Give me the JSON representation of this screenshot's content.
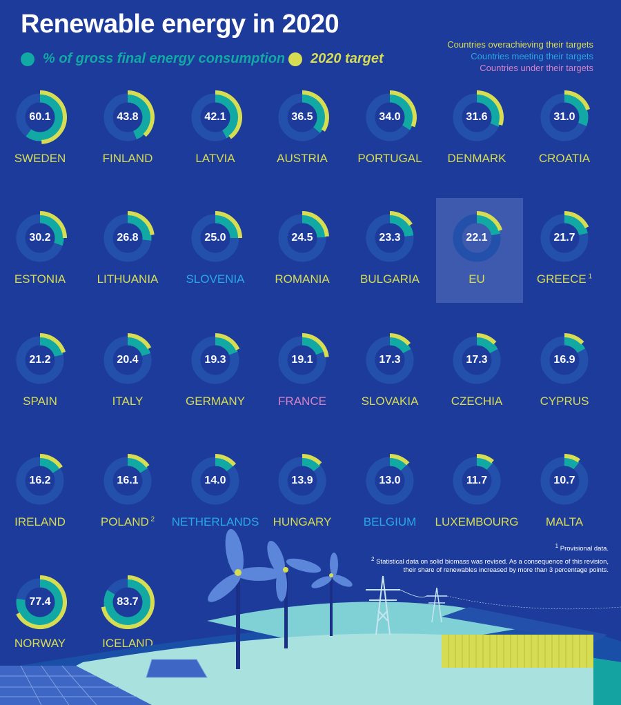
{
  "title": "Renewable energy in 2020",
  "legend": {
    "share_label": "% of gross final energy consumption",
    "target_label": "2020 target"
  },
  "status_legend": {
    "over": "Countries overachieving their targets",
    "meeting": "Countries meeting their targets",
    "under": "Countries under their targets"
  },
  "colors": {
    "background": "#1d3b9b",
    "ring_track": "#2350ab",
    "share": "#12a9a4",
    "target": "#d7dd52",
    "over": "#d7dd52",
    "meeting": "#2ba8e6",
    "under": "#d583c5",
    "eu_highlight": "#3d5aae"
  },
  "footnotes": {
    "note1_mark": "1",
    "note1_text": "Provisional data.",
    "note2_mark": "2",
    "note2_line1": "Statistical data on solid biomass was revised. As a consequence of this revision,",
    "note2_line2": "their share of renewables increased by more than 3 percentage points."
  },
  "chart_data": {
    "type": "donut",
    "title": "Renewable energy in 2020",
    "unit": "% of gross final energy consumption",
    "countries": [
      {
        "name": "SWEDEN",
        "value": 60.1,
        "target": 49,
        "status": "over",
        "note": ""
      },
      {
        "name": "FINLAND",
        "value": 43.8,
        "target": 38,
        "status": "over",
        "note": ""
      },
      {
        "name": "LATVIA",
        "value": 42.1,
        "target": 40,
        "status": "over",
        "note": ""
      },
      {
        "name": "AUSTRIA",
        "value": 36.5,
        "target": 34,
        "status": "over",
        "note": ""
      },
      {
        "name": "PORTUGAL",
        "value": 34.0,
        "target": 31,
        "status": "over",
        "note": ""
      },
      {
        "name": "DENMARK",
        "value": 31.6,
        "target": 30,
        "status": "over",
        "note": ""
      },
      {
        "name": "CROATIA",
        "value": 31.0,
        "target": 20,
        "status": "over",
        "note": ""
      },
      {
        "name": "ESTONIA",
        "value": 30.2,
        "target": 25,
        "status": "over",
        "note": ""
      },
      {
        "name": "LITHUANIA",
        "value": 26.8,
        "target": 23,
        "status": "over",
        "note": ""
      },
      {
        "name": "SLOVENIA",
        "value": 25.0,
        "target": 25,
        "status": "meeting",
        "note": ""
      },
      {
        "name": "ROMANIA",
        "value": 24.5,
        "target": 24,
        "status": "over",
        "note": ""
      },
      {
        "name": "BULGARIA",
        "value": 23.3,
        "target": 16,
        "status": "over",
        "note": ""
      },
      {
        "name": "EU",
        "value": 22.1,
        "target": 20,
        "status": "over",
        "note": ""
      },
      {
        "name": "GREECE",
        "value": 21.7,
        "target": 18,
        "status": "over",
        "note": "1"
      },
      {
        "name": "SPAIN",
        "value": 21.2,
        "target": 20,
        "status": "over",
        "note": ""
      },
      {
        "name": "ITALY",
        "value": 20.4,
        "target": 17,
        "status": "over",
        "note": ""
      },
      {
        "name": "GERMANY",
        "value": 19.3,
        "target": 18,
        "status": "over",
        "note": ""
      },
      {
        "name": "FRANCE",
        "value": 19.1,
        "target": 23,
        "status": "under",
        "note": ""
      },
      {
        "name": "SLOVAKIA",
        "value": 17.3,
        "target": 14,
        "status": "over",
        "note": ""
      },
      {
        "name": "CZECHIA",
        "value": 17.3,
        "target": 13,
        "status": "over",
        "note": ""
      },
      {
        "name": "CYPRUS",
        "value": 16.9,
        "target": 13,
        "status": "over",
        "note": ""
      },
      {
        "name": "IRELAND",
        "value": 16.2,
        "target": 16,
        "status": "over",
        "note": ""
      },
      {
        "name": "POLAND",
        "value": 16.1,
        "target": 15,
        "status": "over",
        "note": "2"
      },
      {
        "name": "NETHERLANDS",
        "value": 14.0,
        "target": 14,
        "status": "meeting",
        "note": ""
      },
      {
        "name": "HUNGARY",
        "value": 13.9,
        "target": 13,
        "status": "over",
        "note": ""
      },
      {
        "name": "BELGIUM",
        "value": 13.0,
        "target": 13,
        "status": "meeting",
        "note": ""
      },
      {
        "name": "LUXEMBOURG",
        "value": 11.7,
        "target": 11,
        "status": "over",
        "note": ""
      },
      {
        "name": "MALTA",
        "value": 10.7,
        "target": 10,
        "status": "over",
        "note": ""
      },
      {
        "name": "NORWAY",
        "value": 77.4,
        "target": 67.5,
        "status": "over",
        "note": ""
      },
      {
        "name": "ICELAND",
        "value": 83.7,
        "target": 72,
        "status": "over",
        "note": ""
      }
    ]
  }
}
